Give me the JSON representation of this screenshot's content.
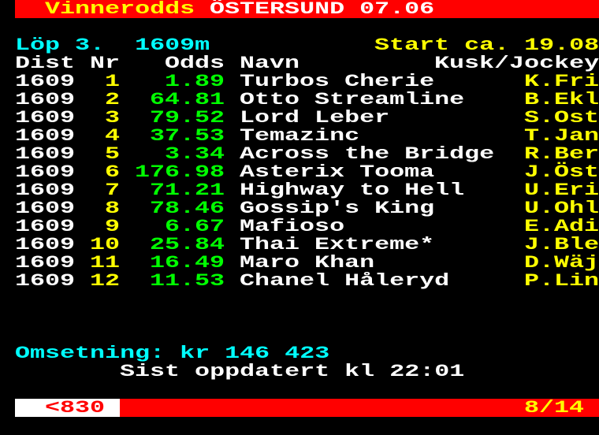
{
  "header": {
    "title_prefix": "Vinnerodds",
    "title_rest": "ÖSTERSUND 07.06"
  },
  "race": {
    "label": "Löp 3.  1609m",
    "start": "Start ca. 19.08"
  },
  "columns": {
    "dist": "Dist",
    "nr": "Nr",
    "odds": "Odds",
    "name": "Navn",
    "jockey": "Kusk/Jockey"
  },
  "rows": [
    {
      "dist": "1609",
      "nr": "1",
      "odds": "1.89",
      "name": "Turbos Cherie",
      "jockey": "K.Fri"
    },
    {
      "dist": "1609",
      "nr": "2",
      "odds": "64.81",
      "name": "Otto Streamline",
      "jockey": "B.Ekl"
    },
    {
      "dist": "1609",
      "nr": "3",
      "odds": "79.52",
      "name": "Lord Leber",
      "jockey": "S.Ost"
    },
    {
      "dist": "1609",
      "nr": "4",
      "odds": "37.53",
      "name": "Temazinc",
      "jockey": "T.Jan"
    },
    {
      "dist": "1609",
      "nr": "5",
      "odds": "3.34",
      "name": "Across the Bridge",
      "jockey": "R.Ber"
    },
    {
      "dist": "1609",
      "nr": "6",
      "odds": "176.98",
      "name": "Asterix Tooma",
      "jockey": "J.Öst"
    },
    {
      "dist": "1609",
      "nr": "7",
      "odds": "71.21",
      "name": "Highway to Hell",
      "jockey": "U.Eri"
    },
    {
      "dist": "1609",
      "nr": "8",
      "odds": "78.46",
      "name": "Gossip's King",
      "jockey": "U.Ohl"
    },
    {
      "dist": "1609",
      "nr": "9",
      "odds": "6.67",
      "name": "Mafioso",
      "jockey": "E.Adi"
    },
    {
      "dist": "1609",
      "nr": "10",
      "odds": "25.84",
      "name": "Thai Extreme*",
      "jockey": "J.Ble"
    },
    {
      "dist": "1609",
      "nr": "11",
      "odds": "16.49",
      "name": "Maro Khan",
      "jockey": "D.Wäj"
    },
    {
      "dist": "1609",
      "nr": "12",
      "odds": "11.53",
      "name": "Chanel Håleryd",
      "jockey": "P.Lin"
    }
  ],
  "footer": {
    "turnover": "Omsetning: kr 146 423",
    "updated": "Sist oppdatert kl 22:01",
    "prev_page": "<830",
    "page_count": "8/14"
  },
  "colors": {
    "bar": "#ff0000",
    "name": "#ffffff",
    "odds": "#00ff00",
    "nr": "#ffff00",
    "info": "#00ffff"
  }
}
